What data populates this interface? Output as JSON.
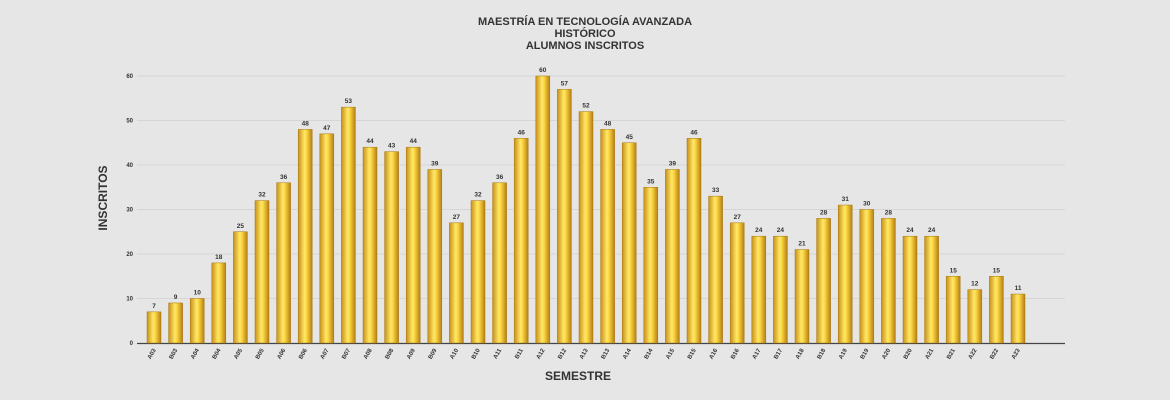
{
  "chart_data": {
    "type": "bar",
    "title": [
      "MAESTRÍA EN TECNOLOGÍA AVANZADA",
      "HISTÓRICO",
      "ALUMNOS INSCRITOS"
    ],
    "xlabel": "SEMESTRE",
    "ylabel": "INSCRITOS",
    "ylim": [
      0,
      60
    ],
    "yticks": [
      0,
      10,
      20,
      30,
      40,
      50,
      60
    ],
    "grid": true,
    "categories": [
      "A03",
      "B03",
      "A04",
      "B04",
      "A05",
      "B05",
      "A06",
      "B06",
      "A07",
      "B07",
      "A08",
      "B08",
      "A09",
      "B09",
      "A10",
      "B10",
      "A11",
      "B11",
      "A12",
      "B12",
      "A13",
      "B13",
      "A14",
      "B14",
      "A15",
      "B15",
      "A16",
      "B16",
      "A17",
      "B17",
      "A18",
      "B18",
      "A19",
      "B19",
      "A20",
      "B20",
      "A21",
      "B21",
      "A22",
      "B22",
      "A23"
    ],
    "values": [
      7,
      9,
      10,
      18,
      25,
      32,
      36,
      48,
      47,
      53,
      44,
      43,
      44,
      39,
      27,
      32,
      36,
      46,
      60,
      57,
      52,
      48,
      45,
      35,
      39,
      46,
      33,
      27,
      24,
      24,
      21,
      28,
      31,
      30,
      28,
      24,
      24,
      15,
      12,
      15,
      11
    ],
    "bar_color": "#f2c12e"
  }
}
